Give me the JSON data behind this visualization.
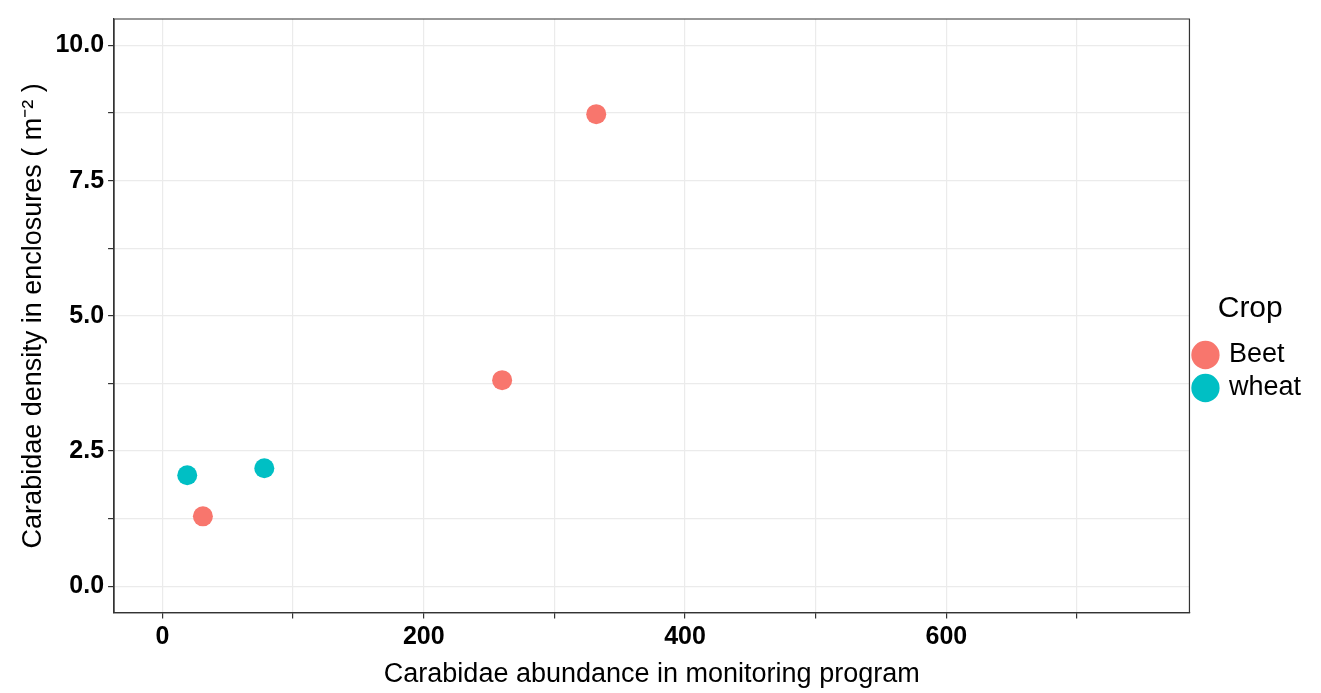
{
  "chart_data": {
    "type": "scatter",
    "xlabel": "Carabidae abundance in monitoring program",
    "ylabel": "Carabidae density in enclosures ( m⁻² )",
    "legend_title": "Crop",
    "legend": "right",
    "grid": true,
    "marker": "circle",
    "xlim": [
      -37,
      786
    ],
    "xticks": [
      0,
      {
        "value": 100,
        "label": null
      },
      200,
      {
        "value": 300,
        "label": null
      },
      400,
      {
        "value": 500,
        "label": null
      },
      600,
      {
        "value": 700,
        "label": null
      }
    ],
    "ylim": [
      -0.49,
      10.49
    ],
    "yticks": [
      {
        "value": 0,
        "label": "0.0"
      },
      {
        "value": 1.25,
        "label": null
      },
      {
        "value": 2.5,
        "label": "2.5"
      },
      {
        "value": 3.75,
        "label": null
      },
      {
        "value": 5,
        "label": "5.0"
      },
      {
        "value": 6.25,
        "label": null
      },
      {
        "value": 7.5,
        "label": "7.5"
      },
      {
        "value": 8.75,
        "label": null
      },
      {
        "value": 10,
        "label": "10.0"
      }
    ],
    "series": [
      {
        "name": "Beet",
        "color": "#f8766d",
        "x": [
          31,
          260,
          332
        ],
        "values": [
          1.29,
          3.81,
          8.73
        ]
      },
      {
        "name": "wheat",
        "color": "#00bfc4",
        "x": [
          19,
          78
        ],
        "values": [
          2.05,
          2.18
        ]
      }
    ]
  }
}
